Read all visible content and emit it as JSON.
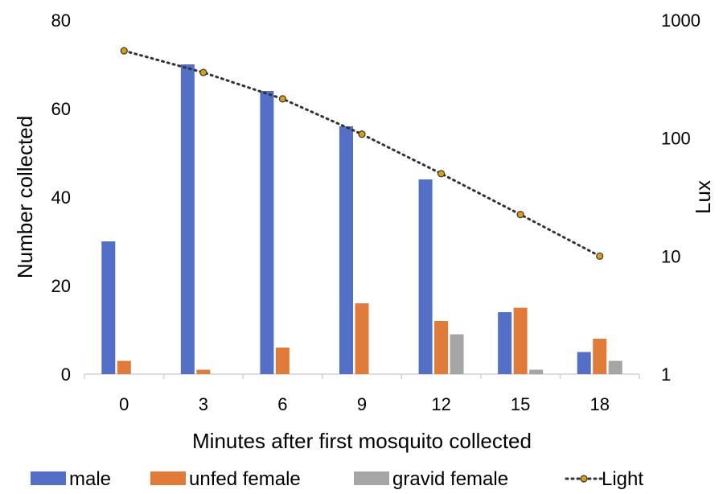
{
  "chart_data": {
    "type": "bar",
    "xlabel": "Minutes after first mosquito collected",
    "ylabel": "Number collected",
    "y2label": "Lux",
    "categories": [
      "0",
      "3",
      "6",
      "9",
      "12",
      "15",
      "18"
    ],
    "ylim": [
      0,
      80
    ],
    "yticks": [
      "0",
      "20",
      "40",
      "60",
      "80"
    ],
    "y2lim": [
      1,
      1000
    ],
    "y2scale": "log",
    "y2ticks": [
      "1",
      "10",
      "100",
      "1000"
    ],
    "series": [
      {
        "name": "male",
        "type": "bar",
        "color": "#5470C6",
        "values": [
          30,
          70,
          64,
          56,
          44,
          14,
          5
        ]
      },
      {
        "name": "unfed female",
        "type": "bar",
        "color": "#E07B39",
        "values": [
          3,
          1,
          6,
          16,
          12,
          15,
          8
        ]
      },
      {
        "name": "gravid female",
        "type": "bar",
        "color": "#A5A5A5",
        "values": [
          0,
          0,
          0,
          0,
          9,
          1,
          3
        ]
      },
      {
        "name": "Light",
        "type": "line",
        "axis": "y2",
        "color": "#333333",
        "marker_color": "#D4A017",
        "values": [
          550,
          360,
          215,
          108,
          50,
          22.5,
          10
        ]
      }
    ],
    "legend_position": "bottom",
    "grid": false
  }
}
